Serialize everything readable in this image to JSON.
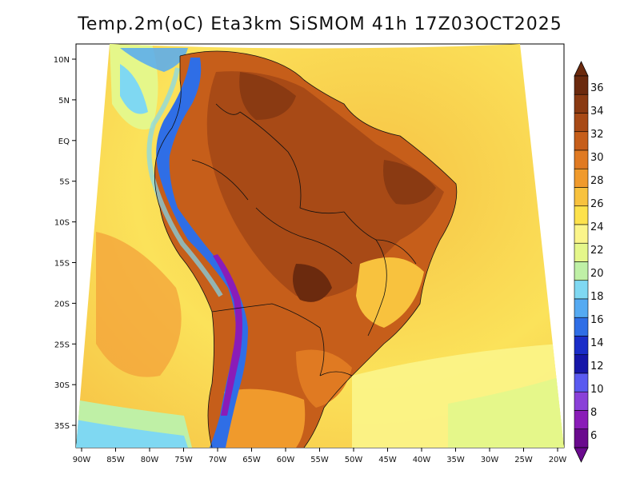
{
  "title": "Temp.2m(oC) Eta3km SiSMOM 41h 17Z03OCT2025",
  "map": {
    "lat_ticks": [
      "10N",
      "5N",
      "EQ",
      "5S",
      "10S",
      "15S",
      "20S",
      "25S",
      "30S",
      "35S"
    ],
    "lon_ticks": [
      "90W",
      "85W",
      "80W",
      "75W",
      "70W",
      "65W",
      "60W",
      "55W",
      "50W",
      "45W",
      "40W",
      "35W",
      "30W",
      "25W",
      "20W"
    ]
  },
  "colorbar": {
    "labels": [
      "36",
      "34",
      "32",
      "30",
      "28",
      "26",
      "24",
      "22",
      "20",
      "18",
      "16",
      "14",
      "12",
      "10",
      "8",
      "6"
    ],
    "colors_top_to_bottom": [
      "#6b2a0e",
      "#8a3a12",
      "#a84a16",
      "#c65e1a",
      "#e07a22",
      "#f09a2c",
      "#f8c23e",
      "#fde24c",
      "#fbf58a",
      "#e5f78a",
      "#bff0a6",
      "#7fd8f2",
      "#55aaf2",
      "#2f6ee6",
      "#1a2dc8",
      "#1616a8",
      "#5a5af0",
      "#8a40d8",
      "#8a1cb8",
      "#6a0a8e"
    ]
  }
}
